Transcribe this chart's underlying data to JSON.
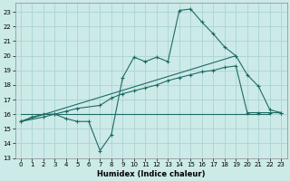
{
  "xlabel": "Humidex (Indice chaleur)",
  "bg_color": "#cceae8",
  "grid_color": "#aad4d1",
  "line_color": "#1e6b65",
  "xlim": [
    -0.5,
    23.5
  ],
  "ylim": [
    13,
    23.6
  ],
  "yticks": [
    13,
    14,
    15,
    16,
    17,
    18,
    19,
    20,
    21,
    22,
    23
  ],
  "xticks": [
    0,
    1,
    2,
    3,
    4,
    5,
    6,
    7,
    8,
    9,
    10,
    11,
    12,
    13,
    14,
    15,
    16,
    17,
    18,
    19,
    20,
    21,
    22,
    23
  ],
  "line1_x": [
    0,
    1,
    2,
    3,
    4,
    5,
    6,
    7,
    8,
    9,
    10,
    11,
    12,
    13,
    14,
    15,
    16,
    17,
    18,
    19,
    20,
    21,
    22,
    23
  ],
  "line1_y": [
    15.5,
    15.8,
    16.0,
    16.0,
    15.7,
    15.5,
    15.5,
    13.5,
    14.6,
    18.5,
    19.9,
    19.6,
    19.9,
    19.6,
    23.1,
    23.2,
    22.3,
    21.5,
    20.6,
    20.0,
    18.7,
    17.9,
    16.3,
    16.1
  ],
  "line2_x": [
    0,
    2,
    3,
    4,
    5,
    7,
    8,
    9,
    10,
    11,
    12,
    13,
    14,
    15,
    16,
    17,
    18,
    19,
    20,
    21,
    22,
    23
  ],
  "line2_y": [
    15.5,
    15.8,
    16.0,
    16.2,
    16.4,
    16.6,
    17.1,
    17.4,
    17.6,
    17.8,
    18.0,
    18.3,
    18.5,
    18.7,
    18.9,
    19.0,
    19.2,
    19.3,
    16.1,
    16.1,
    16.1,
    16.1
  ],
  "line3_x": [
    0,
    22
  ],
  "line3_y": [
    16.0,
    16.0
  ],
  "line4_x": [
    0,
    19
  ],
  "line4_y": [
    15.5,
    20.0
  ]
}
